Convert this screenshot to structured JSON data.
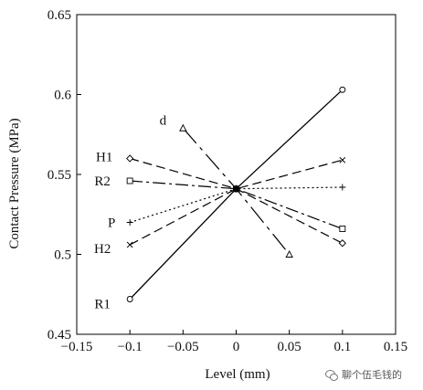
{
  "chart_data": {
    "type": "line",
    "xlabel": "Level (mm)",
    "ylabel": "Contact Pressure (MPa)",
    "xlim": [
      -0.15,
      0.15
    ],
    "ylim": [
      0.45,
      0.65
    ],
    "x_ticks": [
      "−0.15",
      "−0.1",
      "−0.05",
      "0",
      "0.05",
      "0.1",
      "0.15"
    ],
    "y_ticks": [
      "0.45",
      "0.5",
      "0.55",
      "0.6",
      "0.65"
    ],
    "grid": false,
    "legend": "inline labels at left of each series",
    "series": [
      {
        "name": "d",
        "marker": "triangle",
        "dash": "dashdot-long",
        "points": [
          [
            -0.05,
            0.579
          ],
          [
            0,
            0.541
          ],
          [
            0.05,
            0.5
          ]
        ]
      },
      {
        "name": "H1",
        "marker": "diamond",
        "dash": "dashed",
        "points": [
          [
            -0.1,
            0.56
          ],
          [
            0,
            0.541
          ],
          [
            0.1,
            0.507
          ]
        ]
      },
      {
        "name": "R2",
        "marker": "square",
        "dash": "dashdot",
        "points": [
          [
            -0.1,
            0.546
          ],
          [
            0,
            0.541
          ],
          [
            0.1,
            0.516
          ]
        ]
      },
      {
        "name": "P",
        "marker": "plus",
        "dash": "dotted",
        "points": [
          [
            -0.1,
            0.52
          ],
          [
            0,
            0.541
          ],
          [
            0.1,
            0.542
          ]
        ]
      },
      {
        "name": "H2",
        "marker": "x",
        "dash": "dashed",
        "points": [
          [
            -0.1,
            0.506
          ],
          [
            0,
            0.541
          ],
          [
            0.1,
            0.559
          ]
        ]
      },
      {
        "name": "R1",
        "marker": "circle",
        "dash": "solid",
        "points": [
          [
            -0.1,
            0.472
          ],
          [
            0,
            0.541
          ],
          [
            0.1,
            0.603
          ]
        ]
      }
    ]
  },
  "watermark": {
    "text": "聊个伍毛钱的",
    "icon": "chat-bubbles-icon"
  }
}
